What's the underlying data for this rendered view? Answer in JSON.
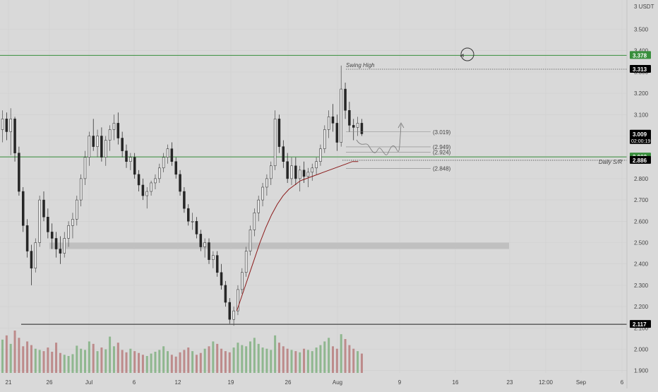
{
  "chart_data": {
    "type": "candlestick",
    "quote_currency": "USDT",
    "y_axis_unit_label": "3 USDT",
    "y_ticks": [
      3.5,
      3.4,
      3.3,
      3.2,
      3.1,
      3.0,
      2.9,
      2.8,
      2.7,
      2.6,
      2.5,
      2.4,
      2.3,
      2.2,
      2.1,
      2.0,
      1.9
    ],
    "y_tick_labels": [
      "3.500",
      "3.400",
      "3.300",
      "3.200",
      "3.100",
      "3.000",
      "2.900",
      "2.800",
      "2.700",
      "2.600",
      "2.500",
      "2.400",
      "2.300",
      "2.200",
      "2.100",
      "2.000",
      "1.900"
    ],
    "ylim": [
      1.88,
      3.56
    ],
    "x_tick_labels": [
      "21",
      "26",
      "Jul",
      "6",
      "12",
      "19",
      "26",
      "Aug",
      "9",
      "16",
      "23",
      "12:00",
      "Sep",
      "6"
    ],
    "price_labels": [
      {
        "value": 3.378,
        "text": "3.378",
        "color": "#388e3c"
      },
      {
        "value": 3.313,
        "text": "3.313",
        "color": "#000000"
      },
      {
        "value": 3.009,
        "text": "3.009",
        "sub": "02:00:19",
        "color": "#000000"
      },
      {
        "value": 2.902,
        "text": "2.902",
        "color": "#388e3c"
      },
      {
        "value": 2.886,
        "text": "2.886",
        "color": "#000000"
      },
      {
        "value": 2.117,
        "text": "2.117",
        "color": "#000000"
      }
    ],
    "horizontal_levels": [
      {
        "value": 3.378,
        "style": "solid",
        "color": "#388e3c"
      },
      {
        "value": 2.902,
        "style": "solid",
        "color": "#388e3c"
      },
      {
        "value": 2.117,
        "style": "solid",
        "color": "#222222"
      },
      {
        "value": 3.313,
        "style": "dotted",
        "color": "#555555"
      },
      {
        "value": 2.886,
        "style": "dotted",
        "color": "#555555"
      }
    ],
    "annotations": [
      {
        "text": "Swing High",
        "value": 3.313
      },
      {
        "text": "Daily S/R",
        "value": 2.886
      }
    ],
    "projection_levels": [
      {
        "value": 3.019,
        "text": "(3.019)"
      },
      {
        "value": 2.949,
        "text": "(2.949)"
      },
      {
        "value": 2.924,
        "text": "(2.924)"
      },
      {
        "value": 2.848,
        "text": "(2.848)"
      }
    ],
    "support_zone": [
      2.47,
      2.5
    ],
    "candles": [
      [
        3.03,
        3.12,
        2.97,
        3.08
      ],
      [
        3.08,
        3.11,
        2.98,
        3.02
      ],
      [
        3.02,
        3.13,
        2.91,
        3.08
      ],
      [
        3.08,
        3.09,
        2.88,
        2.92
      ],
      [
        2.92,
        2.95,
        2.72,
        2.74
      ],
      [
        2.74,
        2.76,
        2.55,
        2.58
      ],
      [
        2.58,
        2.61,
        2.43,
        2.46
      ],
      [
        2.46,
        2.49,
        2.3,
        2.38
      ],
      [
        2.38,
        2.52,
        2.36,
        2.5
      ],
      [
        2.5,
        2.72,
        2.48,
        2.7
      ],
      [
        2.7,
        2.74,
        2.6,
        2.62
      ],
      [
        2.62,
        2.66,
        2.52,
        2.55
      ],
      [
        2.55,
        2.59,
        2.47,
        2.52
      ],
      [
        2.52,
        2.55,
        2.43,
        2.47
      ],
      [
        2.47,
        2.53,
        2.4,
        2.45
      ],
      [
        2.45,
        2.55,
        2.43,
        2.52
      ],
      [
        2.52,
        2.6,
        2.48,
        2.58
      ],
      [
        2.58,
        2.64,
        2.52,
        2.61
      ],
      [
        2.61,
        2.72,
        2.58,
        2.7
      ],
      [
        2.7,
        2.82,
        2.67,
        2.8
      ],
      [
        2.8,
        2.93,
        2.77,
        2.9
      ],
      [
        2.9,
        3.02,
        2.86,
        3.0
      ],
      [
        3.0,
        3.08,
        2.93,
        2.95
      ],
      [
        2.95,
        3.03,
        2.9,
        3.0
      ],
      [
        3.0,
        3.04,
        2.88,
        2.9
      ],
      [
        2.9,
        3.0,
        2.86,
        2.98
      ],
      [
        2.98,
        3.05,
        2.93,
        3.03
      ],
      [
        3.03,
        3.1,
        2.98,
        3.06
      ],
      [
        3.06,
        3.11,
        2.96,
        2.99
      ],
      [
        2.99,
        3.02,
        2.9,
        2.93
      ],
      [
        2.93,
        2.96,
        2.85,
        2.88
      ],
      [
        2.88,
        2.92,
        2.84,
        2.9
      ],
      [
        2.9,
        2.92,
        2.8,
        2.82
      ],
      [
        2.82,
        2.84,
        2.74,
        2.77
      ],
      [
        2.77,
        2.8,
        2.7,
        2.72
      ],
      [
        2.72,
        2.76,
        2.66,
        2.74
      ],
      [
        2.74,
        2.79,
        2.72,
        2.78
      ],
      [
        2.78,
        2.82,
        2.75,
        2.8
      ],
      [
        2.8,
        2.87,
        2.78,
        2.85
      ],
      [
        2.85,
        2.92,
        2.83,
        2.9
      ],
      [
        2.9,
        2.96,
        2.87,
        2.94
      ],
      [
        2.94,
        2.97,
        2.86,
        2.88
      ],
      [
        2.88,
        2.9,
        2.8,
        2.82
      ],
      [
        2.82,
        2.84,
        2.72,
        2.74
      ],
      [
        2.74,
        2.76,
        2.64,
        2.66
      ],
      [
        2.66,
        2.68,
        2.58,
        2.6
      ],
      [
        2.6,
        2.64,
        2.56,
        2.6
      ],
      [
        2.6,
        2.62,
        2.52,
        2.54
      ],
      [
        2.54,
        2.56,
        2.46,
        2.48
      ],
      [
        2.48,
        2.52,
        2.43,
        2.5
      ],
      [
        2.5,
        2.52,
        2.4,
        2.42
      ],
      [
        2.42,
        2.46,
        2.38,
        2.44
      ],
      [
        2.44,
        2.46,
        2.34,
        2.36
      ],
      [
        2.36,
        2.4,
        2.28,
        2.3
      ],
      [
        2.3,
        2.32,
        2.2,
        2.22
      ],
      [
        2.22,
        2.24,
        2.12,
        2.14
      ],
      [
        2.14,
        2.2,
        2.11,
        2.18
      ],
      [
        2.18,
        2.3,
        2.16,
        2.28
      ],
      [
        2.28,
        2.38,
        2.26,
        2.36
      ],
      [
        2.36,
        2.48,
        2.34,
        2.46
      ],
      [
        2.46,
        2.58,
        2.44,
        2.56
      ],
      [
        2.56,
        2.66,
        2.53,
        2.64
      ],
      [
        2.64,
        2.72,
        2.6,
        2.7
      ],
      [
        2.7,
        2.78,
        2.67,
        2.76
      ],
      [
        2.76,
        2.82,
        2.72,
        2.8
      ],
      [
        2.8,
        2.88,
        2.77,
        2.86
      ],
      [
        2.86,
        3.12,
        2.84,
        3.08
      ],
      [
        3.08,
        3.1,
        2.92,
        2.95
      ],
      [
        2.95,
        2.98,
        2.85,
        2.88
      ],
      [
        2.88,
        2.92,
        2.78,
        2.8
      ],
      [
        2.8,
        2.9,
        2.77,
        2.86
      ],
      [
        2.86,
        2.9,
        2.77,
        2.8
      ],
      [
        2.8,
        2.86,
        2.74,
        2.84
      ],
      [
        2.84,
        2.88,
        2.78,
        2.81
      ],
      [
        2.81,
        2.85,
        2.76,
        2.83
      ],
      [
        2.83,
        2.87,
        2.79,
        2.85
      ],
      [
        2.85,
        2.9,
        2.82,
        2.88
      ],
      [
        2.88,
        2.96,
        2.86,
        2.94
      ],
      [
        2.94,
        3.05,
        2.92,
        3.03
      ],
      [
        3.03,
        3.12,
        2.99,
        3.09
      ],
      [
        3.09,
        3.15,
        3.02,
        3.06
      ],
      [
        3.06,
        3.1,
        2.93,
        2.97
      ],
      [
        2.97,
        3.33,
        2.95,
        3.22
      ],
      [
        3.22,
        3.25,
        3.08,
        3.12
      ],
      [
        3.12,
        3.16,
        3.02,
        3.05
      ],
      [
        3.05,
        3.08,
        2.98,
        3.04
      ],
      [
        3.04,
        3.09,
        3.0,
        3.06
      ],
      [
        3.06,
        3.08,
        3.0,
        3.01
      ]
    ],
    "ema": [
      2.18,
      2.26,
      2.34,
      2.42,
      2.5,
      2.57,
      2.63,
      2.68,
      2.72,
      2.75,
      2.77,
      2.79,
      2.8,
      2.81,
      2.82,
      2.83,
      2.84,
      2.85,
      2.86,
      2.87,
      2.88,
      2.88
    ],
    "volume": [
      55,
      62,
      48,
      70,
      58,
      44,
      52,
      46,
      40,
      38,
      36,
      42,
      35,
      50,
      33,
      30,
      28,
      31,
      45,
      40,
      38,
      52,
      48,
      36,
      42,
      39,
      60,
      44,
      50,
      38,
      34,
      40,
      36,
      33,
      30,
      28,
      32,
      35,
      38,
      44,
      36,
      30,
      27,
      34,
      38,
      42,
      36,
      30,
      33,
      40,
      44,
      52,
      48,
      40,
      36,
      34,
      42,
      50,
      46,
      44,
      52,
      58,
      48,
      42,
      40,
      38,
      62,
      50,
      44,
      40,
      38,
      36,
      34,
      40,
      38,
      36,
      42,
      46,
      52,
      58,
      44,
      40,
      64,
      56,
      46,
      40,
      36,
      32
    ]
  }
}
